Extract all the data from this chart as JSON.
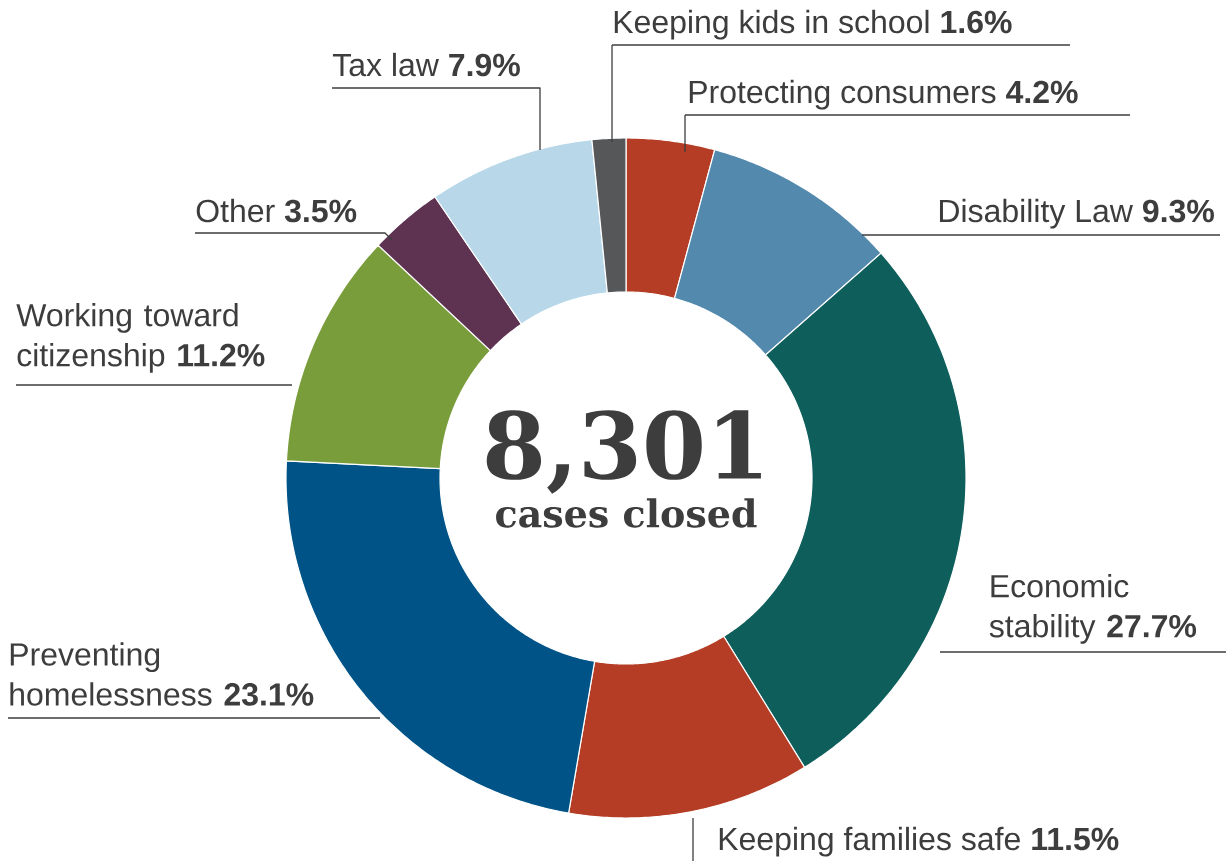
{
  "chart_data": {
    "type": "donut",
    "categories": [
      "Protecting consumers",
      "Disability Law",
      "Economic stability",
      "Keeping families safe",
      "Preventing homelessness",
      "Working toward citizenship",
      "Other",
      "Tax law",
      "Keeping kids in school"
    ],
    "values": [
      4.2,
      9.3,
      27.7,
      11.5,
      23.1,
      11.2,
      3.5,
      7.9,
      1.6
    ],
    "value_labels": [
      "4.2%",
      "9.3%",
      "27.7%",
      "11.5%",
      "23.1%",
      "11.2%",
      "3.5%",
      "7.9%",
      "1.6%"
    ],
    "colors": [
      "#b53d26",
      "#5289ad",
      "#0e5e5c",
      "#b53d26",
      "#005386",
      "#7a9d3c",
      "#5e3351",
      "#b8d8ea",
      "#555759"
    ],
    "annotations": [
      "8,301",
      "cases closed"
    ]
  }
}
